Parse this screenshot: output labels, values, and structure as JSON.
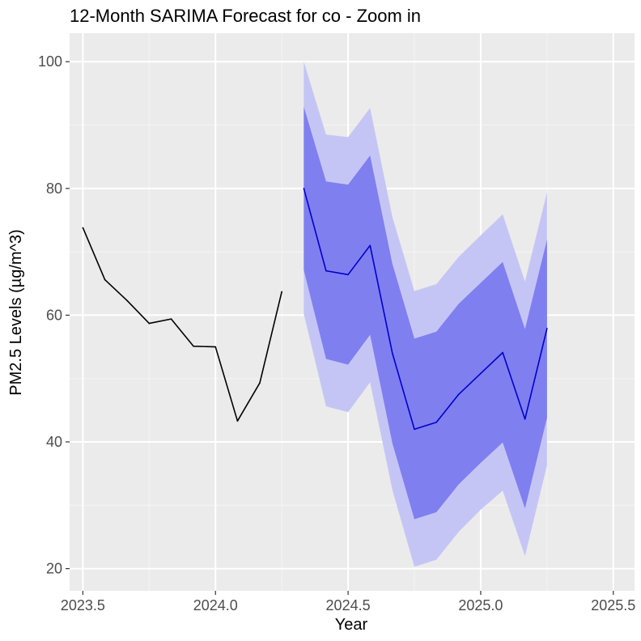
{
  "chart_data": {
    "type": "line",
    "title": "12-Month SARIMA Forecast for co - Zoom in",
    "xlabel": "Year",
    "ylabel": "PM2.5 Levels (µg/m^3)",
    "xlim": [
      2023.45,
      2025.58
    ],
    "ylim": [
      16.5,
      104.5
    ],
    "x_ticks": [
      2023.5,
      2024.0,
      2024.5,
      2025.0,
      2025.5
    ],
    "x_tick_labels": [
      "2023.5",
      "2024.0",
      "2024.5",
      "2025.0",
      "2025.5"
    ],
    "y_ticks": [
      20,
      40,
      60,
      80,
      100
    ],
    "y_tick_labels": [
      "20",
      "40",
      "60",
      "80",
      "100"
    ],
    "grid": true,
    "legend": "none",
    "series": [
      {
        "role": "history",
        "color": "#000000",
        "x": [
          2023.5,
          2023.583,
          2023.667,
          2023.75,
          2023.833,
          2023.917,
          2024.0,
          2024.083,
          2024.167,
          2024.25
        ],
        "y": [
          73.8,
          65.6,
          62.3,
          58.7,
          59.4,
          55.1,
          55.0,
          43.3,
          49.3,
          63.7
        ]
      },
      {
        "role": "forecast",
        "color": "#0000cc",
        "x": [
          2024.333,
          2024.417,
          2024.5,
          2024.583,
          2024.667,
          2024.75,
          2024.833,
          2024.917,
          2025.0,
          2025.083,
          2025.167,
          2025.25
        ],
        "y": [
          80.0,
          67.0,
          66.4,
          71.0,
          54.0,
          42.0,
          43.1,
          47.5,
          50.8,
          54.1,
          43.6,
          57.9
        ]
      }
    ],
    "bands": [
      {
        "level": "95%",
        "color": "#c5c5f5",
        "x": [
          2024.333,
          2024.417,
          2024.5,
          2024.583,
          2024.667,
          2024.75,
          2024.833,
          2024.917,
          2025.0,
          2025.083,
          2025.167,
          2025.25
        ],
        "lower": [
          60.2,
          45.6,
          44.7,
          49.4,
          32.4,
          20.3,
          21.4,
          25.8,
          29.3,
          32.3,
          22.0,
          36.3
        ],
        "upper": [
          100.0,
          88.5,
          88.1,
          92.7,
          75.5,
          63.8,
          64.9,
          69.2,
          72.6,
          75.9,
          65.3,
          79.4
        ]
      },
      {
        "level": "80%",
        "color": "#7f7ff0",
        "x": [
          2024.333,
          2024.417,
          2024.5,
          2024.583,
          2024.667,
          2024.75,
          2024.833,
          2024.917,
          2025.0,
          2025.083,
          2025.167,
          2025.25
        ],
        "lower": [
          67.1,
          53.1,
          52.2,
          56.9,
          39.8,
          27.8,
          28.9,
          33.3,
          36.7,
          39.9,
          29.5,
          43.8
        ],
        "upper": [
          92.9,
          81.1,
          80.6,
          85.2,
          68.1,
          56.3,
          57.4,
          61.8,
          65.1,
          68.4,
          57.8,
          71.9
        ]
      }
    ]
  }
}
